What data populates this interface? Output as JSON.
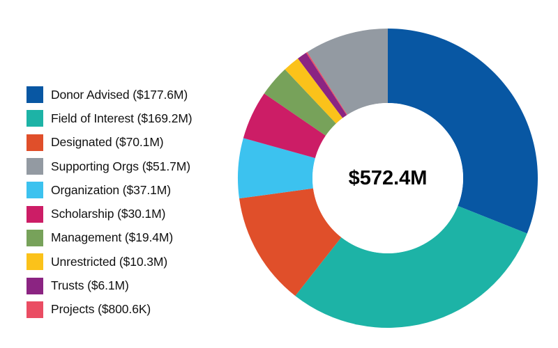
{
  "chart_data": {
    "type": "pie",
    "variant": "donut",
    "title": "",
    "center_label": "$572.4M",
    "total_millions": 572.4,
    "start_angle": "12 o'clock",
    "direction": "clockwise",
    "legend_position": "left",
    "slices": [
      {
        "name": "Donor Advised",
        "label": "Donor Advised ($177.6M)",
        "value": 177.6,
        "color": "#0857a3"
      },
      {
        "name": "Field of Interest",
        "label": "Field of Interest ($169.2M)",
        "value": 169.2,
        "color": "#1db3a6"
      },
      {
        "name": "Designated",
        "label": "Designated ($70.1M)",
        "value": 70.1,
        "color": "#e04f2a"
      },
      {
        "name": "Organization",
        "label": "Organization ($37.1M)",
        "value": 37.1,
        "color": "#3cc2ef"
      },
      {
        "name": "Scholarship",
        "label": "Scholarship ($30.1M)",
        "value": 30.1,
        "color": "#cc1d66"
      },
      {
        "name": "Management",
        "label": "Management ($19.4M)",
        "value": 19.4,
        "color": "#77a25a"
      },
      {
        "name": "Unrestricted",
        "label": "Unrestricted ($10.3M)",
        "value": 10.3,
        "color": "#fbc21a"
      },
      {
        "name": "Trusts",
        "label": "Trusts ($6.1M)",
        "value": 6.1,
        "color": "#8b2482"
      },
      {
        "name": "Projects",
        "label": "Projects ($800.6K)",
        "value": 0.8006,
        "color": "#ea4d63"
      },
      {
        "name": "Supporting Orgs",
        "label": "Supporting Orgs ($51.7M)",
        "value": 51.7,
        "color": "#939aa2"
      }
    ],
    "legend_order": [
      "Donor Advised",
      "Field of Interest",
      "Designated",
      "Supporting Orgs",
      "Organization",
      "Scholarship",
      "Management",
      "Unrestricted",
      "Trusts",
      "Projects"
    ]
  }
}
